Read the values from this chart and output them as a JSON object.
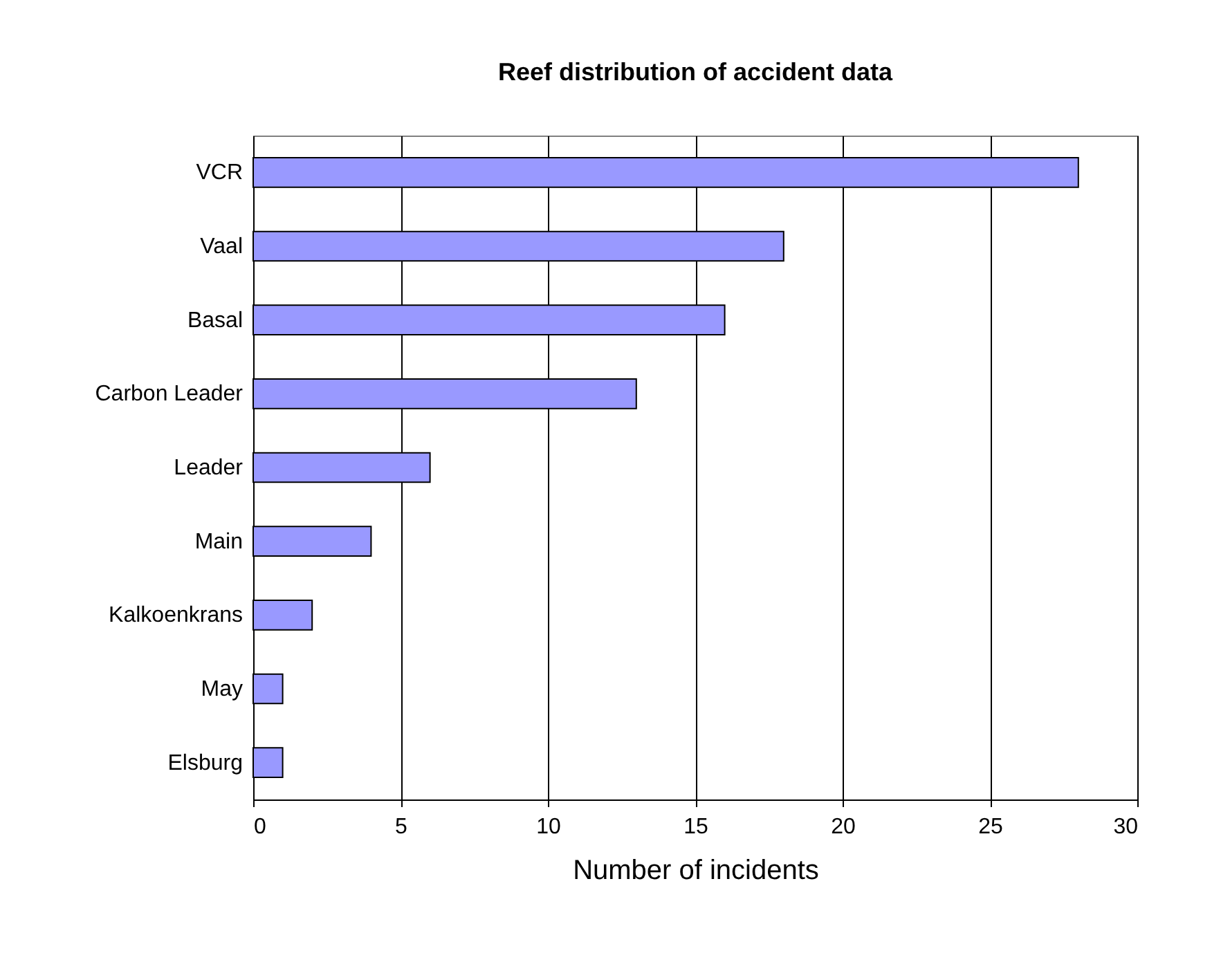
{
  "chart_data": {
    "type": "bar",
    "orientation": "horizontal",
    "title": "Reef distribution of accident data",
    "xlabel": "Number of incidents",
    "categories": [
      "VCR",
      "Vaal",
      "Basal",
      "Carbon Leader",
      "Leader",
      "Main",
      "Kalkoenkrans",
      "May",
      "Elsburg"
    ],
    "values": [
      28,
      18,
      16,
      13,
      6,
      4,
      2,
      1,
      1
    ],
    "color": "#9999ff",
    "xlim": [
      0,
      30
    ],
    "xticks": [
      0,
      5,
      10,
      15,
      20,
      25,
      30
    ],
    "grid": "x"
  }
}
